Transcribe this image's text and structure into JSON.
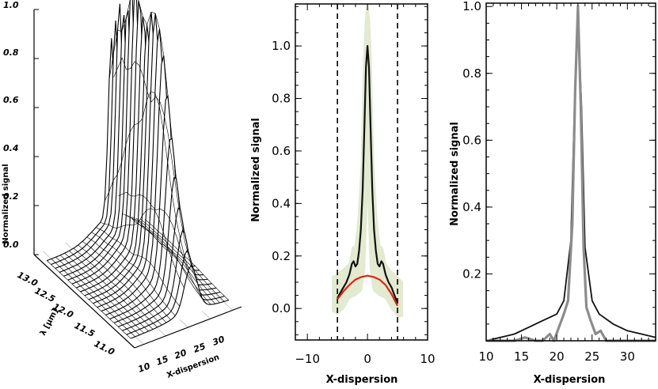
{
  "chart_data": [
    {
      "id": "panel-a",
      "type": "surface",
      "zlabel": "Normalized signal",
      "xlabel": "X-dispersion",
      "ylabel": "λ [μm]",
      "x_ticks": [
        "10",
        "15",
        "20",
        "25",
        "30"
      ],
      "y_ticks": [
        "11.0",
        "11.5",
        "12.0",
        "12.5",
        "13.0"
      ],
      "z_ticks": [
        "0.0",
        "0.2",
        "0.4",
        "0.6",
        "0.8",
        "1.0"
      ],
      "xlim": [
        8,
        32
      ],
      "ylim": [
        10.8,
        13.2
      ],
      "zlim": [
        0,
        1.0
      ],
      "peak_x": 23,
      "peak_amplitude": [
        [
          11.0,
          0.18
        ],
        [
          11.1,
          0.22
        ],
        [
          11.2,
          0.28
        ],
        [
          11.3,
          0.35
        ],
        [
          11.4,
          0.45
        ],
        [
          11.5,
          0.58
        ],
        [
          11.6,
          0.72
        ],
        [
          11.7,
          0.85
        ],
        [
          11.8,
          0.93
        ],
        [
          11.9,
          0.97
        ],
        [
          12.0,
          0.96
        ],
        [
          12.1,
          0.9
        ],
        [
          12.2,
          0.92
        ],
        [
          12.3,
          0.97
        ],
        [
          12.4,
          0.99
        ],
        [
          12.5,
          0.97
        ],
        [
          12.6,
          0.9
        ],
        [
          12.7,
          0.86
        ],
        [
          12.8,
          0.88
        ],
        [
          12.9,
          0.8
        ],
        [
          13.0,
          0.72
        ]
      ]
    },
    {
      "id": "panel-b",
      "type": "line",
      "xlabel": "X-dispersion",
      "ylabel": "Normalized signal",
      "xlim": [
        -12,
        10
      ],
      "ylim": [
        -0.12,
        1.16
      ],
      "x_ticks": [
        -10,
        0,
        10
      ],
      "y_ticks": [
        0.0,
        0.2,
        0.4,
        0.6,
        0.8,
        1.0
      ],
      "y_tick_labels": [
        "0.0",
        "0.2",
        "0.4",
        "0.6",
        "0.8",
        "1.0"
      ],
      "vlines": [
        -5,
        5
      ],
      "series": [
        {
          "color": "#111111",
          "points": [
            [
              -5.0,
              0.04
            ],
            [
              -4.5,
              0.06
            ],
            [
              -4.0,
              0.08
            ],
            [
              -3.5,
              0.1
            ],
            [
              -3.0,
              0.13
            ],
            [
              -2.6,
              0.17
            ],
            [
              -2.3,
              0.18
            ],
            [
              -2.0,
              0.16
            ],
            [
              -1.7,
              0.17
            ],
            [
              -1.4,
              0.22
            ],
            [
              -1.1,
              0.3
            ],
            [
              -0.8,
              0.45
            ],
            [
              -0.5,
              0.7
            ],
            [
              -0.25,
              0.92
            ],
            [
              0.0,
              1.0
            ],
            [
              0.25,
              0.92
            ],
            [
              0.5,
              0.7
            ],
            [
              0.8,
              0.45
            ],
            [
              1.1,
              0.3
            ],
            [
              1.4,
              0.22
            ],
            [
              1.7,
              0.17
            ],
            [
              2.0,
              0.16
            ],
            [
              2.3,
              0.18
            ],
            [
              2.6,
              0.17
            ],
            [
              3.0,
              0.13
            ],
            [
              3.5,
              0.1
            ],
            [
              4.0,
              0.08
            ],
            [
              4.5,
              0.05
            ],
            [
              5.0,
              0.02
            ]
          ]
        },
        {
          "color": "#e8200c",
          "points": [
            [
              -5.0,
              0.035
            ],
            [
              -4.0,
              0.065
            ],
            [
              -3.0,
              0.09
            ],
            [
              -2.0,
              0.11
            ],
            [
              -1.0,
              0.12
            ],
            [
              0.0,
              0.125
            ],
            [
              1.0,
              0.12
            ],
            [
              2.0,
              0.11
            ],
            [
              3.0,
              0.09
            ],
            [
              4.0,
              0.055
            ],
            [
              5.0,
              0.01
            ]
          ]
        }
      ],
      "band": {
        "color": "#dfe8cc",
        "upper": [
          [
            -5.8,
            0.12
          ],
          [
            -5.0,
            0.13
          ],
          [
            -4.0,
            0.15
          ],
          [
            -3.0,
            0.17
          ],
          [
            -2.5,
            0.23
          ],
          [
            -2.0,
            0.24
          ],
          [
            -1.5,
            0.35
          ],
          [
            -1.0,
            0.55
          ],
          [
            -0.6,
            0.95
          ],
          [
            -0.3,
            1.1
          ],
          [
            0.0,
            1.16
          ],
          [
            0.3,
            1.1
          ],
          [
            0.6,
            0.95
          ],
          [
            1.0,
            0.55
          ],
          [
            1.5,
            0.35
          ],
          [
            2.0,
            0.24
          ],
          [
            2.5,
            0.23
          ],
          [
            3.0,
            0.17
          ],
          [
            4.0,
            0.14
          ],
          [
            5.0,
            0.12
          ],
          [
            5.8,
            0.1
          ]
        ],
        "lower": [
          [
            -5.8,
            -0.01
          ],
          [
            -5.0,
            -0.02
          ],
          [
            -4.0,
            0.0
          ],
          [
            -3.0,
            0.04
          ],
          [
            -2.0,
            0.05
          ],
          [
            -1.0,
            0.07
          ],
          [
            -0.5,
            0.15
          ],
          [
            0.0,
            0.5
          ],
          [
            0.5,
            0.15
          ],
          [
            1.0,
            0.07
          ],
          [
            2.0,
            0.05
          ],
          [
            3.0,
            0.04
          ],
          [
            4.0,
            0.0
          ],
          [
            5.0,
            -0.03
          ],
          [
            5.8,
            -0.03
          ]
        ]
      }
    },
    {
      "id": "panel-c",
      "type": "line",
      "xlabel": "X-dispersion",
      "ylabel": "Normalized signal",
      "xlim": [
        10,
        34
      ],
      "ylim": [
        0,
        1.01
      ],
      "x_ticks": [
        10,
        15,
        20,
        25,
        30
      ],
      "y_ticks": [
        0.2,
        0.4,
        0.6,
        0.8,
        1.0
      ],
      "y_tick_labels": [
        "0.2",
        "0.4",
        "0.6",
        "0.8",
        "1.0"
      ],
      "series": [
        {
          "color": "#111111",
          "points": [
            [
              10,
              0.0
            ],
            [
              12,
              0.01
            ],
            [
              14,
              0.02
            ],
            [
              16,
              0.04
            ],
            [
              18,
              0.06
            ],
            [
              20,
              0.08
            ],
            [
              21,
              0.12
            ],
            [
              22,
              0.3
            ],
            [
              22.5,
              0.7
            ],
            [
              23,
              0.98
            ],
            [
              23.5,
              0.7
            ],
            [
              24,
              0.28
            ],
            [
              25,
              0.12
            ],
            [
              26,
              0.08
            ],
            [
              28,
              0.05
            ],
            [
              30,
              0.03
            ],
            [
              32,
              0.02
            ],
            [
              34,
              0.01
            ]
          ]
        },
        {
          "color": "#8c8c8c",
          "points": [
            [
              10,
              0.0
            ],
            [
              14,
              0.0
            ],
            [
              15.5,
              0.01
            ],
            [
              17,
              0.0
            ],
            [
              18,
              0.0
            ],
            [
              19,
              0.02
            ],
            [
              19.6,
              0.0
            ],
            [
              20.3,
              0.04
            ],
            [
              21.0,
              0.08
            ],
            [
              21.6,
              0.12
            ],
            [
              22.2,
              0.35
            ],
            [
              22.6,
              0.75
            ],
            [
              23.0,
              1.0
            ],
            [
              23.4,
              0.7
            ],
            [
              23.8,
              0.28
            ],
            [
              24.2,
              0.1
            ],
            [
              24.8,
              0.06
            ],
            [
              25.5,
              0.02
            ],
            [
              26.2,
              0.03
            ],
            [
              27,
              0.0
            ],
            [
              30,
              0.0
            ],
            [
              34,
              0.0
            ]
          ]
        }
      ]
    }
  ]
}
